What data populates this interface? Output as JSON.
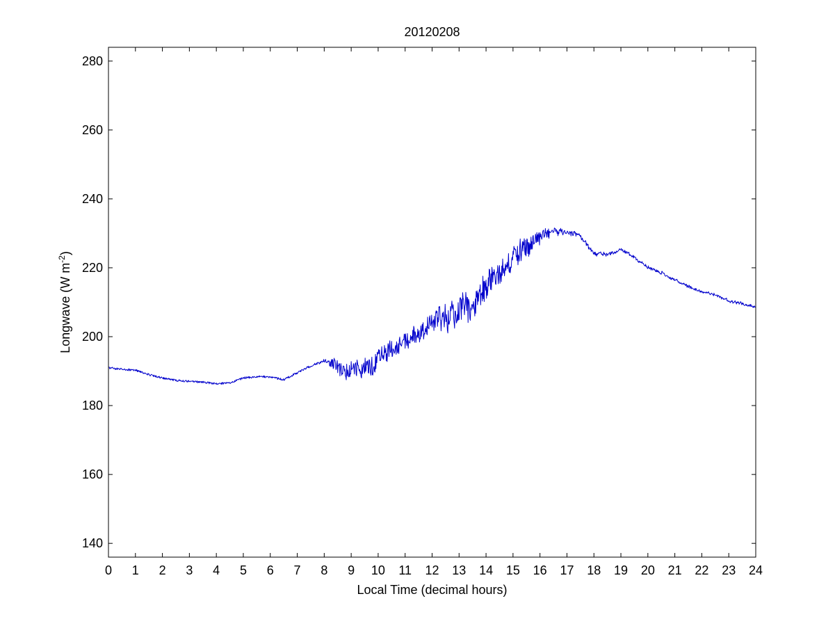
{
  "chart_data": {
    "type": "line",
    "title": "20120208",
    "xlabel": "Local Time (decimal hours)",
    "ylabel": {
      "base": "Longwave (W m",
      "superscript": "-2",
      "close": ")"
    },
    "xlim": [
      0,
      24
    ],
    "ylim": [
      136,
      284
    ],
    "xticks": [
      0,
      1,
      2,
      3,
      4,
      5,
      6,
      7,
      8,
      9,
      10,
      11,
      12,
      13,
      14,
      15,
      16,
      17,
      18,
      19,
      20,
      21,
      22,
      23,
      24
    ],
    "yticks": [
      140,
      160,
      180,
      200,
      220,
      240,
      260,
      280
    ],
    "grid": false,
    "box": true,
    "series": [
      {
        "color": "#0000cc",
        "x": [
          0,
          0.5,
          1,
          1.5,
          2,
          2.5,
          3,
          3.5,
          4,
          4.5,
          5,
          5.5,
          6,
          6.5,
          7,
          7.5,
          8,
          8.5,
          9,
          9.5,
          10,
          10.5,
          11,
          11.5,
          12,
          12.5,
          13,
          13.5,
          14,
          14.5,
          15,
          15.5,
          16,
          16.5,
          17,
          17.5,
          18,
          18.5,
          19,
          19.5,
          20,
          20.5,
          21,
          21.5,
          22,
          22.5,
          23,
          23.5,
          24
        ],
        "y": [
          191,
          190.5,
          190.3,
          189,
          188,
          187.3,
          187,
          186.8,
          186.3,
          186.6,
          188,
          188.4,
          188.3,
          187.5,
          189.5,
          191.5,
          193,
          191,
          191.5,
          190,
          193.5,
          195.5,
          198.5,
          201,
          203.5,
          206.5,
          208,
          211,
          216,
          218.5,
          222.5,
          226,
          229,
          230.5,
          230.5,
          229,
          224,
          223.8,
          225.5,
          223,
          220,
          218.5,
          216.5,
          214.5,
          213,
          212.2,
          210.5,
          209.5,
          208.5
        ],
        "noise": [
          0,
          0,
          0,
          0,
          0,
          0,
          0,
          0,
          0,
          0,
          0,
          0,
          0,
          0,
          0,
          0,
          0.5,
          2.5,
          3.5,
          3.5,
          3.5,
          3,
          3,
          3,
          4,
          4.5,
          5,
          5,
          5,
          4,
          4,
          3.5,
          2.5,
          1.5,
          1,
          0.8,
          0.6,
          0.5,
          0.5,
          0.4,
          0.4,
          0.4,
          0.4,
          0.4,
          0.3,
          0.3,
          0.3,
          0.3,
          0.3
        ]
      }
    ]
  }
}
